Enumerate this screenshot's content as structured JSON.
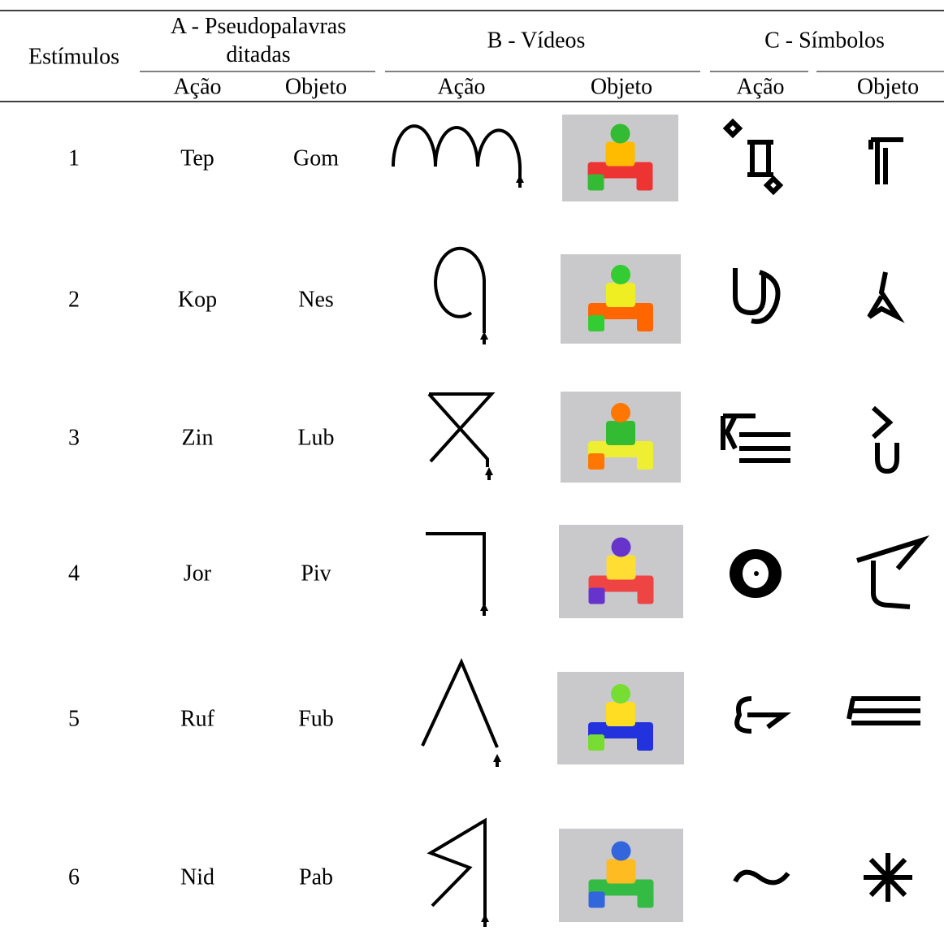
{
  "header": {
    "stimuli": "Estímulos",
    "groups": [
      "A - Pseudopalavras ditadas",
      "B - Vídeos",
      "C - Símbolos"
    ],
    "subheaders": [
      "Ação",
      "Objeto",
      "Ação",
      "Objeto",
      "Ação",
      "Objeto"
    ]
  },
  "rows": [
    {
      "number": 1,
      "action": "Tep",
      "object": "Gom"
    },
    {
      "number": 2,
      "action": "Kop",
      "object": "Nes"
    },
    {
      "number": 3,
      "action": "Zin",
      "object": "Lub"
    },
    {
      "number": 4,
      "action": "Jor",
      "object": "Piv"
    },
    {
      "number": 5,
      "action": "Ruf",
      "object": "Fub"
    },
    {
      "number": 6,
      "action": "Nid",
      "object": "Pab"
    }
  ]
}
